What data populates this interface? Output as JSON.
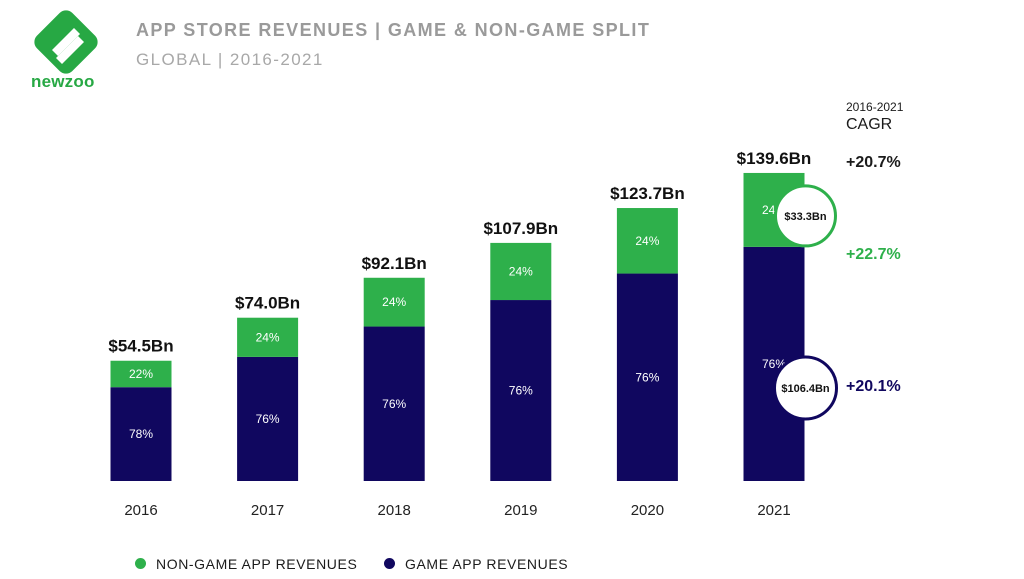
{
  "brand": {
    "name": "newzoo"
  },
  "header": {
    "title": "APP STORE REVENUES | GAME & NON-GAME SPLIT",
    "subtitle": "GLOBAL | 2016-2021"
  },
  "colors": {
    "game": "#10075f",
    "non_game": "#2eb04b",
    "brand": "#27a844"
  },
  "cagr": {
    "period": "2016-2021",
    "label": "CAGR",
    "total": "+20.7%",
    "non_game": "+22.7%",
    "game": "+20.1%"
  },
  "callouts": {
    "non_game_2021": "$33.3Bn",
    "game_2021": "$106.4Bn"
  },
  "legend": {
    "non_game": "NON-GAME APP REVENUES",
    "game": "GAME APP REVENUES"
  },
  "chart_data": {
    "type": "bar",
    "stacked": true,
    "title": "APP STORE REVENUES | GAME & NON-GAME SPLIT",
    "subtitle": "GLOBAL | 2016-2021",
    "categories": [
      "2016",
      "2017",
      "2018",
      "2019",
      "2020",
      "2021"
    ],
    "totals": [
      54.5,
      74.0,
      92.1,
      107.9,
      123.7,
      139.6
    ],
    "total_labels": [
      "$54.5Bn",
      "$74.0Bn",
      "$92.1Bn",
      "$107.9Bn",
      "$123.7Bn",
      "$139.6Bn"
    ],
    "unit": "Bn USD",
    "series": [
      {
        "name": "GAME APP REVENUES",
        "share_labels": [
          "78%",
          "76%",
          "76%",
          "76%",
          "76%",
          "76%"
        ],
        "shares": [
          78,
          76,
          76,
          76,
          76,
          76
        ]
      },
      {
        "name": "NON-GAME APP REVENUES",
        "share_labels": [
          "22%",
          "24%",
          "24%",
          "24%",
          "24%",
          "24%"
        ],
        "shares": [
          22,
          24,
          24,
          24,
          24,
          24
        ]
      }
    ],
    "ylim": [
      0,
      150
    ],
    "grid": false,
    "legend_position": "bottom-left"
  }
}
